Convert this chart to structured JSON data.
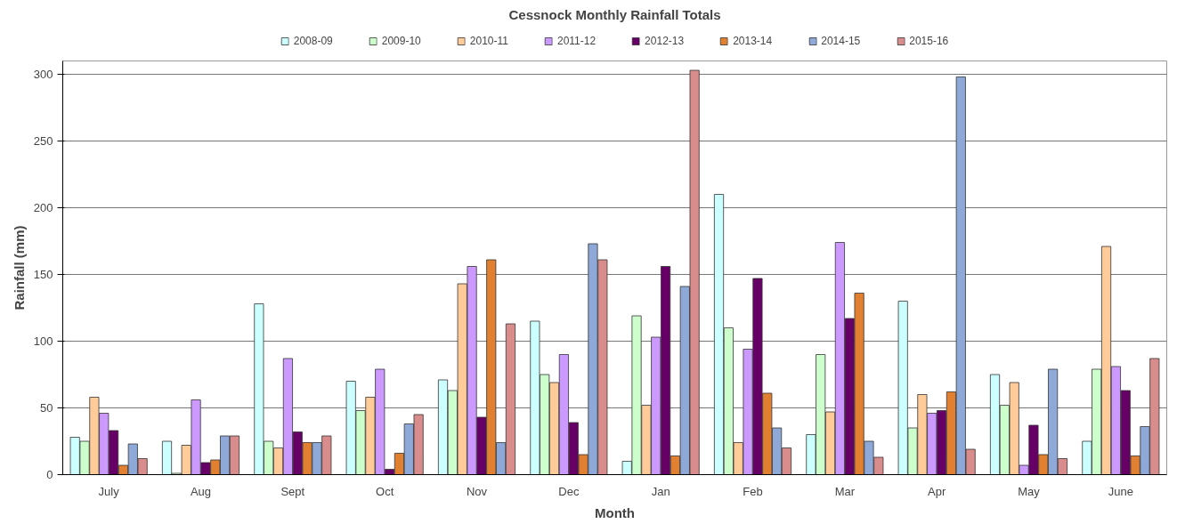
{
  "chart_data": {
    "type": "bar",
    "title": "Cessnock Monthly Rainfall Totals",
    "xlabel": "Month",
    "ylabel": "Rainfall (mm)",
    "categories": [
      "July",
      "Aug",
      "Sept",
      "Oct",
      "Nov",
      "Dec",
      "Jan",
      "Feb",
      "Mar",
      "Apr",
      "May",
      "June"
    ],
    "series": [
      {
        "name": "2008-09",
        "color": "#ccffff",
        "values": [
          28,
          25,
          128,
          70,
          71,
          115,
          10,
          210,
          30,
          130,
          75,
          25
        ]
      },
      {
        "name": "2009-10",
        "color": "#ccffcc",
        "values": [
          25,
          1,
          25,
          48,
          63,
          75,
          119,
          110,
          90,
          35,
          52,
          79
        ]
      },
      {
        "name": "2010-11",
        "color": "#ffcc99",
        "values": [
          58,
          22,
          20,
          58,
          143,
          69,
          52,
          24,
          47,
          60,
          69,
          171
        ]
      },
      {
        "name": "2011-12",
        "color": "#cc99ff",
        "values": [
          46,
          56,
          87,
          79,
          156,
          90,
          103,
          94,
          174,
          46,
          7,
          81
        ]
      },
      {
        "name": "2012-13",
        "color": "#660066",
        "values": [
          33,
          9,
          32,
          4,
          43,
          39,
          156,
          147,
          117,
          48,
          37,
          63
        ]
      },
      {
        "name": "2013-14",
        "color": "#e08030",
        "values": [
          7,
          11,
          24,
          16,
          161,
          15,
          14,
          61,
          136,
          62,
          15,
          14
        ]
      },
      {
        "name": "2014-15",
        "color": "#8ea9d8",
        "values": [
          23,
          29,
          24,
          38,
          24,
          173,
          141,
          35,
          25,
          298,
          79,
          36
        ]
      },
      {
        "name": "2015-16",
        "color": "#d98c8c",
        "values": [
          12,
          29,
          29,
          45,
          113,
          161,
          303,
          20,
          13,
          19,
          12,
          87
        ]
      }
    ],
    "ylim": [
      0,
      310
    ],
    "yticks": [
      0,
      50,
      100,
      150,
      200,
      250,
      300
    ],
    "grid": "y",
    "legend": "top"
  }
}
